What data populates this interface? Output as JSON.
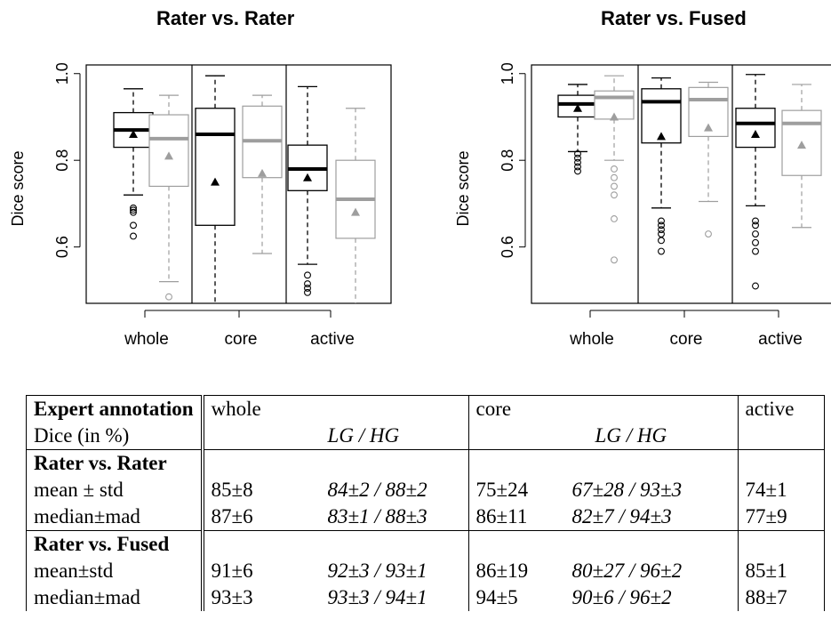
{
  "chart_data": [
    {
      "type": "box",
      "title": "Rater vs. Rater",
      "xlabel": "",
      "ylabel": "Dice score",
      "ylim": [
        0.47,
        1.02
      ],
      "yticks": [
        "0.6",
        "0.8",
        "1.0"
      ],
      "categories": [
        "whole",
        "core",
        "active"
      ],
      "groups": [
        {
          "category": "whole",
          "series": "black",
          "whisker_low": 0.72,
          "q1": 0.83,
          "median": 0.87,
          "q3": 0.91,
          "whisker_high": 0.965,
          "mean": 0.86,
          "outliers": [
            0.69,
            0.685,
            0.68,
            0.65,
            0.625
          ]
        },
        {
          "category": "whole",
          "series": "gray",
          "whisker_low": 0.52,
          "q1": 0.74,
          "median": 0.85,
          "q3": 0.905,
          "whisker_high": 0.95,
          "mean": 0.81,
          "outliers": [
            0.485
          ]
        },
        {
          "category": "core",
          "series": "black",
          "whisker_low": 0.47,
          "q1": 0.65,
          "median": 0.86,
          "q3": 0.92,
          "whisker_high": 0.995,
          "mean": 0.75,
          "outliers": []
        },
        {
          "category": "core",
          "series": "gray",
          "whisker_low": 0.585,
          "q1": 0.76,
          "median": 0.845,
          "q3": 0.925,
          "whisker_high": 0.95,
          "mean": 0.77,
          "outliers": []
        },
        {
          "category": "active",
          "series": "black",
          "whisker_low": 0.56,
          "q1": 0.73,
          "median": 0.78,
          "q3": 0.835,
          "whisker_high": 0.97,
          "mean": 0.76,
          "outliers": [
            0.535,
            0.515,
            0.505,
            0.495
          ]
        },
        {
          "category": "active",
          "series": "gray",
          "whisker_low": 0.47,
          "q1": 0.62,
          "median": 0.71,
          "q3": 0.8,
          "whisker_high": 0.92,
          "mean": 0.68,
          "outliers": []
        }
      ]
    },
    {
      "type": "box",
      "title": "Rater vs. Fused",
      "xlabel": "",
      "ylabel": "Dice score",
      "ylim": [
        0.47,
        1.02
      ],
      "yticks": [
        "0.6",
        "0.8",
        "1.0"
      ],
      "categories": [
        "whole",
        "core",
        "active"
      ],
      "groups": [
        {
          "category": "whole",
          "series": "black",
          "whisker_low": 0.82,
          "q1": 0.9,
          "median": 0.93,
          "q3": 0.95,
          "whisker_high": 0.975,
          "mean": 0.92,
          "outliers": [
            0.815,
            0.805,
            0.795,
            0.785,
            0.775
          ]
        },
        {
          "category": "whole",
          "series": "gray",
          "whisker_low": 0.8,
          "q1": 0.895,
          "median": 0.945,
          "q3": 0.96,
          "whisker_high": 0.995,
          "mean": 0.9,
          "outliers": [
            0.78,
            0.76,
            0.74,
            0.72,
            0.665,
            0.57
          ]
        },
        {
          "category": "core",
          "series": "black",
          "whisker_low": 0.69,
          "q1": 0.84,
          "median": 0.935,
          "q3": 0.965,
          "whisker_high": 0.99,
          "mean": 0.855,
          "outliers": [
            0.66,
            0.65,
            0.64,
            0.63,
            0.615,
            0.59
          ]
        },
        {
          "category": "core",
          "series": "gray",
          "whisker_low": 0.705,
          "q1": 0.855,
          "median": 0.94,
          "q3": 0.968,
          "whisker_high": 0.98,
          "mean": 0.875,
          "outliers": [
            0.63
          ]
        },
        {
          "category": "active",
          "series": "black",
          "whisker_low": 0.695,
          "q1": 0.83,
          "median": 0.885,
          "q3": 0.92,
          "whisker_high": 0.998,
          "mean": 0.86,
          "outliers": [
            0.66,
            0.65,
            0.63,
            0.61,
            0.59,
            0.51
          ]
        },
        {
          "category": "active",
          "series": "gray",
          "whisker_low": 0.645,
          "q1": 0.765,
          "median": 0.885,
          "q3": 0.915,
          "whisker_high": 0.975,
          "mean": 0.835,
          "outliers": []
        }
      ]
    }
  ],
  "colors": {
    "black": "#000000",
    "gray": "#9e9e9e"
  },
  "table": {
    "header_label": "Expert annotation",
    "header_sub": "Dice (in %)",
    "cols": [
      "whole",
      "core",
      "active"
    ],
    "sub_col": "LG / HG",
    "section1": "Rater vs. Rater",
    "section2": "Rater vs. Fused",
    "rows": [
      {
        "label": "mean ± std",
        "whole": "85±8",
        "whole_lg": "84±2 / 88±2",
        "core": "75±24",
        "core_lg": "67±28 / 93±3",
        "active": "74±1"
      },
      {
        "label": "median±mad",
        "whole": "87±6",
        "whole_lg": "83±1 / 88±3",
        "core": "86±11",
        "core_lg": "82±7 / 94±3",
        "active": "77±9"
      },
      {
        "label": "mean±std",
        "whole": "91±6",
        "whole_lg": "92±3 / 93±1",
        "core": "86±19",
        "core_lg": "80±27 / 96±2",
        "active": "85±1"
      },
      {
        "label": "median±mad",
        "whole": "93±3",
        "whole_lg": "93±3 / 94±1",
        "core": "94±5",
        "core_lg": "90±6 / 96±2",
        "active": "88±7"
      }
    ]
  }
}
